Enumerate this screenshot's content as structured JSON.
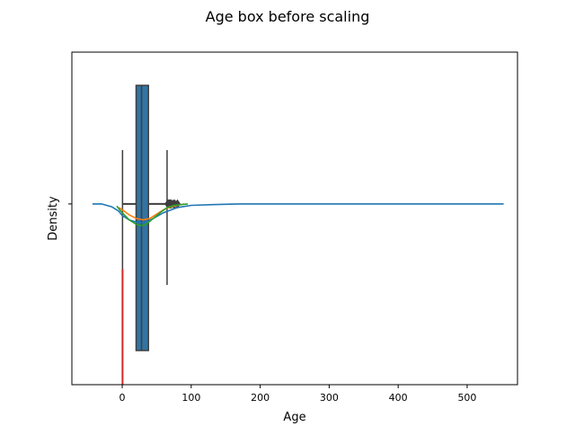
{
  "chart_data": {
    "type": "box",
    "title": "Age box before scaling",
    "xlabel": "Age",
    "ylabel": "Density",
    "xlim": [
      -73,
      573
    ],
    "xticks": [
      0,
      100,
      200,
      300,
      400,
      500
    ],
    "yticks": [
      "0.00"
    ],
    "ytick_label_visible": false,
    "ylim": [
      -0.0025,
      0.0021
    ],
    "grid": false,
    "box": {
      "color": "#3274a1",
      "whislo": 0.42,
      "q1": 20.1,
      "median": 28,
      "q3": 38,
      "whishi": 65,
      "outliers": [
        66,
        67,
        68,
        69,
        70,
        70.5,
        71,
        74,
        76,
        80
      ]
    },
    "density_curves": [
      {
        "color": "#1f77b4",
        "x": [
          -43,
          -30,
          -15,
          -5,
          0,
          10,
          20,
          28,
          35,
          45,
          60,
          80,
          100,
          130,
          170,
          250,
          350,
          450,
          553
        ],
        "y": [
          0.0,
          0.0,
          -4e-05,
          -0.0001,
          -0.00016,
          -0.00022,
          -0.00025,
          -0.00026,
          -0.00025,
          -0.0002,
          -0.00012,
          -5e-05,
          -2e-05,
          -1e-05,
          0.0,
          0.0,
          0.0,
          0.0,
          0.0
        ]
      },
      {
        "color": "#ff7f0e",
        "x": [
          -5,
          0,
          10,
          20,
          30,
          40,
          50,
          60,
          70,
          80,
          90
        ],
        "y": [
          -5e-05,
          -8e-05,
          -0.00015,
          -0.0002,
          -0.00022,
          -0.0002,
          -0.00014,
          -8e-05,
          -4e-05,
          -2e-05,
          0.0
        ]
      },
      {
        "color": "#2ca02c",
        "x": [
          -8,
          0,
          10,
          20,
          28,
          35,
          45,
          55,
          65,
          75,
          85,
          95
        ],
        "y": [
          -3e-05,
          -0.00012,
          -0.00022,
          -0.00028,
          -0.0003,
          -0.00028,
          -0.0002,
          -0.00012,
          -5e-05,
          -2e-05,
          -1e-05,
          0.0
        ]
      },
      {
        "color": "#d62728",
        "x": [
          0.42,
          0.42
        ],
        "y": [
          -0.0009,
          -0.0025
        ]
      }
    ]
  }
}
